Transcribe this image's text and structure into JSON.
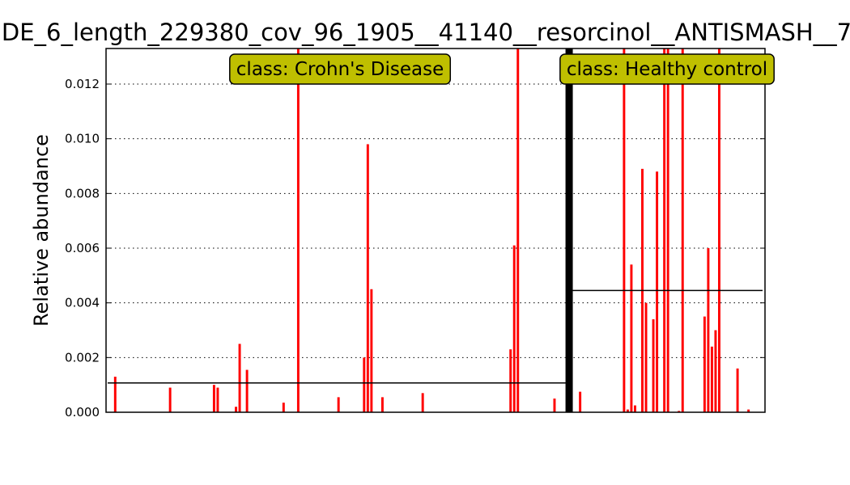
{
  "chart_data": {
    "type": "bar",
    "title": "DE_6_length_229380_cov_96_1905__41140__resorcinol__ANTISMASH__7",
    "xlabel": "",
    "ylabel": "Relative abundance",
    "ylim": [
      0,
      0.0133
    ],
    "yticks": [
      "0.000",
      "0.002",
      "0.004",
      "0.006",
      "0.008",
      "0.010",
      "0.012"
    ],
    "ytick_values": [
      0,
      0.002,
      0.004,
      0.006,
      0.008,
      0.01,
      0.012
    ],
    "grid": true,
    "bar_color": "#ff0000",
    "label_box_color": "#bfbf00",
    "n_samples": 180,
    "classes": [
      {
        "label": "class: Crohn's Disease",
        "mean": 0.00107,
        "bars": [
          {
            "i": 2,
            "v": 0.0013
          },
          {
            "i": 17,
            "v": 0.0009
          },
          {
            "i": 29,
            "v": 0.001
          },
          {
            "i": 30,
            "v": 0.0009
          },
          {
            "i": 35,
            "v": 0.0002
          },
          {
            "i": 36,
            "v": 0.0025
          },
          {
            "i": 38,
            "v": 0.00155
          },
          {
            "i": 48,
            "v": 0.00035
          },
          {
            "i": 52,
            "v": 0.0133
          },
          {
            "i": 63,
            "v": 0.00055
          },
          {
            "i": 70,
            "v": 0.002
          },
          {
            "i": 71,
            "v": 0.0098
          },
          {
            "i": 72,
            "v": 0.0045
          },
          {
            "i": 75,
            "v": 0.00055
          },
          {
            "i": 86,
            "v": 0.0007
          },
          {
            "i": 110,
            "v": 0.0023
          },
          {
            "i": 111,
            "v": 0.0061
          },
          {
            "i": 112,
            "v": 0.0133
          },
          {
            "i": 122,
            "v": 0.0005
          }
        ]
      },
      {
        "label": "class: Healthy control",
        "mean": 0.00445,
        "bars": [
          {
            "i": 129,
            "v": 0.00075
          },
          {
            "i": 141,
            "v": 0.0133
          },
          {
            "i": 142,
            "v": 0.0001
          },
          {
            "i": 143,
            "v": 0.0054
          },
          {
            "i": 144,
            "v": 0.00025
          },
          {
            "i": 146,
            "v": 0.0089
          },
          {
            "i": 147,
            "v": 0.004
          },
          {
            "i": 149,
            "v": 0.0034
          },
          {
            "i": 150,
            "v": 0.0088
          },
          {
            "i": 152,
            "v": 0.0133
          },
          {
            "i": 153,
            "v": 0.0133
          },
          {
            "i": 156,
            "v": 5e-05
          },
          {
            "i": 157,
            "v": 0.0133
          },
          {
            "i": 163,
            "v": 0.0035
          },
          {
            "i": 164,
            "v": 0.006
          },
          {
            "i": 165,
            "v": 0.0024
          },
          {
            "i": 166,
            "v": 0.003
          },
          {
            "i": 167,
            "v": 0.0133
          },
          {
            "i": 172,
            "v": 0.0016
          },
          {
            "i": 175,
            "v": 0.0001
          }
        ]
      }
    ],
    "separator_index": 126
  }
}
